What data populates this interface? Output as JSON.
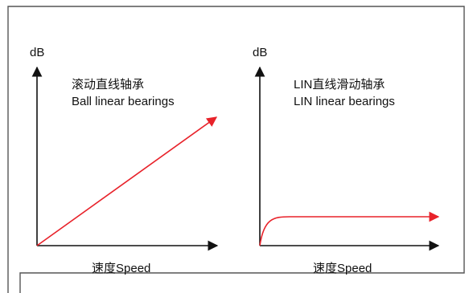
{
  "colors": {
    "frame": "#555555",
    "axis": "#111111",
    "curve": "#e8222a",
    "background": "#ffffff"
  },
  "left_panel": {
    "y_label": "dB",
    "x_label": "速度Speed",
    "title_cn": "滚动直线轴承",
    "title_en": "Ball linear bearings",
    "curve_shape": "linear-increasing"
  },
  "right_panel": {
    "y_label": "dB",
    "x_label": "速度Speed",
    "title_cn": "LIN直线滑动轴承",
    "title_en": "LIN linear bearings",
    "curve_shape": "rise-then-flat"
  }
}
